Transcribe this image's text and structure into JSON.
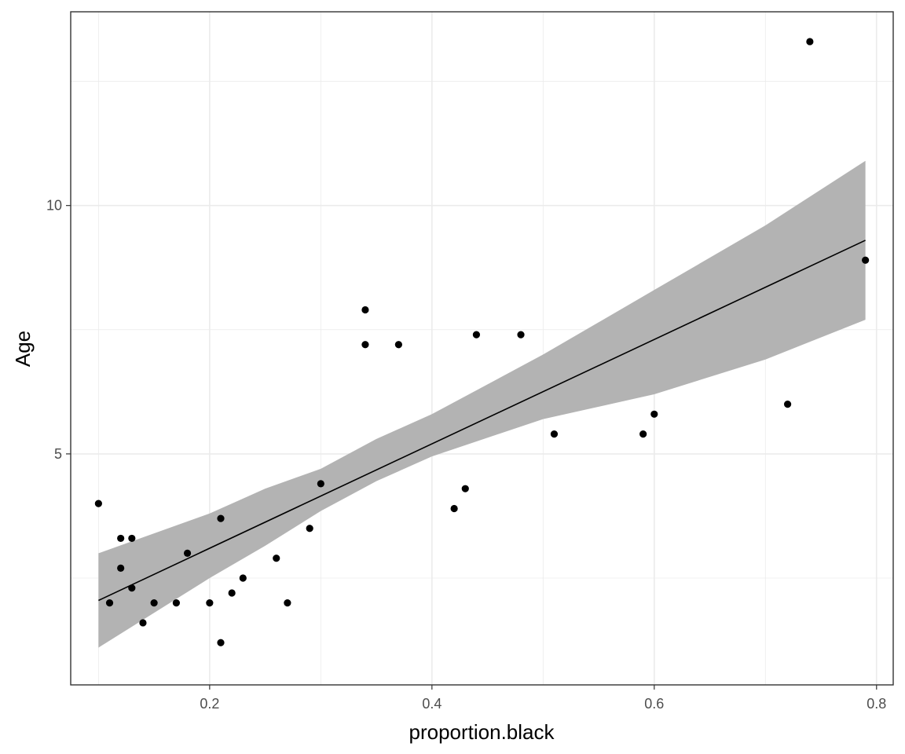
{
  "chart_data": {
    "type": "scatter",
    "title": "",
    "xlabel": "proportion.black",
    "ylabel": "Age",
    "xlim": [
      0.075,
      0.815
    ],
    "ylim": [
      0.35,
      13.9
    ],
    "x_major_ticks": [
      0.2,
      0.4,
      0.6,
      0.8
    ],
    "x_tick_labels": [
      "0.2",
      "0.4",
      "0.6",
      "0.8"
    ],
    "x_minor_ticks": [
      0.1,
      0.3,
      0.5,
      0.7
    ],
    "y_major_ticks": [
      5,
      10
    ],
    "y_tick_labels": [
      "5",
      "10"
    ],
    "y_minor_ticks": [
      2.5,
      7.5,
      12.5
    ],
    "grid": true,
    "legend": "none",
    "colors": {
      "points": "#000000",
      "fit_line": "#000000",
      "confidence_band": "#b3b3b3",
      "grid": "#ebebeb",
      "panel_border": "#333333"
    },
    "points": [
      {
        "x": 0.1,
        "y": 4.0
      },
      {
        "x": 0.11,
        "y": 2.0
      },
      {
        "x": 0.12,
        "y": 3.3
      },
      {
        "x": 0.12,
        "y": 2.7
      },
      {
        "x": 0.13,
        "y": 3.3
      },
      {
        "x": 0.13,
        "y": 2.3
      },
      {
        "x": 0.14,
        "y": 1.6
      },
      {
        "x": 0.15,
        "y": 2.0
      },
      {
        "x": 0.17,
        "y": 2.0
      },
      {
        "x": 0.18,
        "y": 3.0
      },
      {
        "x": 0.2,
        "y": 2.0
      },
      {
        "x": 0.21,
        "y": 3.7
      },
      {
        "x": 0.21,
        "y": 1.2
      },
      {
        "x": 0.22,
        "y": 2.2
      },
      {
        "x": 0.23,
        "y": 2.5
      },
      {
        "x": 0.26,
        "y": 2.9
      },
      {
        "x": 0.27,
        "y": 2.0
      },
      {
        "x": 0.29,
        "y": 3.5
      },
      {
        "x": 0.3,
        "y": 4.4
      },
      {
        "x": 0.34,
        "y": 7.9
      },
      {
        "x": 0.34,
        "y": 7.2
      },
      {
        "x": 0.37,
        "y": 7.2
      },
      {
        "x": 0.42,
        "y": 3.9
      },
      {
        "x": 0.43,
        "y": 4.3
      },
      {
        "x": 0.44,
        "y": 7.4
      },
      {
        "x": 0.48,
        "y": 7.4
      },
      {
        "x": 0.51,
        "y": 5.4
      },
      {
        "x": 0.59,
        "y": 5.4
      },
      {
        "x": 0.6,
        "y": 5.8
      },
      {
        "x": 0.72,
        "y": 6.0
      },
      {
        "x": 0.74,
        "y": 13.3
      },
      {
        "x": 0.79,
        "y": 8.9
      }
    ],
    "fit_line": [
      {
        "x": 0.1,
        "y": 2.05
      },
      {
        "x": 0.79,
        "y": 9.3
      }
    ],
    "confidence_band": [
      {
        "x": 0.1,
        "lower": 1.1,
        "upper": 3.0
      },
      {
        "x": 0.2,
        "lower": 2.5,
        "upper": 3.8
      },
      {
        "x": 0.25,
        "lower": 3.15,
        "upper": 4.3
      },
      {
        "x": 0.3,
        "lower": 3.85,
        "upper": 4.7
      },
      {
        "x": 0.35,
        "lower": 4.45,
        "upper": 5.3
      },
      {
        "x": 0.4,
        "lower": 4.95,
        "upper": 5.8
      },
      {
        "x": 0.5,
        "lower": 5.7,
        "upper": 7.0
      },
      {
        "x": 0.6,
        "lower": 6.2,
        "upper": 8.3
      },
      {
        "x": 0.7,
        "lower": 6.9,
        "upper": 9.6
      },
      {
        "x": 0.79,
        "lower": 7.7,
        "upper": 10.9
      }
    ]
  }
}
